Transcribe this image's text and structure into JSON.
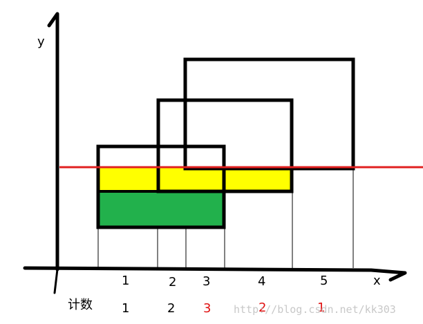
{
  "axes": {
    "y_label": "y",
    "x_label": "x"
  },
  "interval_labels": [
    "1",
    "2",
    "3",
    "4",
    "5"
  ],
  "count_row": {
    "label": "计数",
    "values": [
      {
        "text": "1",
        "color": "#000000"
      },
      {
        "text": "2",
        "color": "#000000"
      },
      {
        "text": "3",
        "color": "#e01010"
      },
      {
        "text": "2",
        "color": "#e01010"
      },
      {
        "text": "1",
        "color": "#e01010"
      }
    ]
  },
  "colors": {
    "scan_line": "#e02020",
    "yellow_fill": "#ffff00",
    "green_fill": "#22b14c",
    "outline": "#000000"
  },
  "watermark": "http://blog.csdn.net/kk303"
}
